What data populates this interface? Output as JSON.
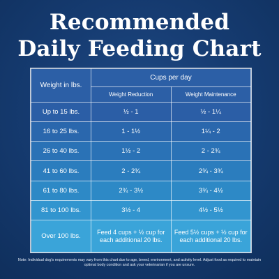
{
  "title_line1": "Recommended",
  "title_line2": "Daily Feeding Chart",
  "table": {
    "weight_header": "Weight in lbs.",
    "cups_header": "Cups per day",
    "col_reduction": "Weight Reduction",
    "col_maintenance": "Weight Maintenance",
    "rows": [
      {
        "weight": "Up to 15 lbs.",
        "reduction": "½ - 1",
        "maintenance": "½ - 1¼"
      },
      {
        "weight": "16 to 25 lbs.",
        "reduction": "1 - 1½",
        "maintenance": "1¼ - 2"
      },
      {
        "weight": "26 to 40 lbs.",
        "reduction": "1½ - 2",
        "maintenance": "2 - 2¾"
      },
      {
        "weight": "41 to 60 lbs.",
        "reduction": "2 - 2¾",
        "maintenance": "2¾ - 3¾"
      },
      {
        "weight": "61 to 80 lbs.",
        "reduction": "2¾ - 3½",
        "maintenance": "3¾ - 4½"
      },
      {
        "weight": "81 to 100 lbs.",
        "reduction": "3½ - 4",
        "maintenance": "4½ - 5½"
      },
      {
        "weight": "Over 100 lbs.",
        "reduction": "Feed 4 cups + ½ cup for each additional 20 lbs.",
        "maintenance": "Feed 5½ cups + ½ cup for each additional 20 lbs."
      }
    ]
  },
  "note": "Note: Individual dog's requirements may vary from this chart due to age, breed, environment, and activity level. Adjust food as required to maintain optimal body condition and ask your veterinarian if you are unsure."
}
